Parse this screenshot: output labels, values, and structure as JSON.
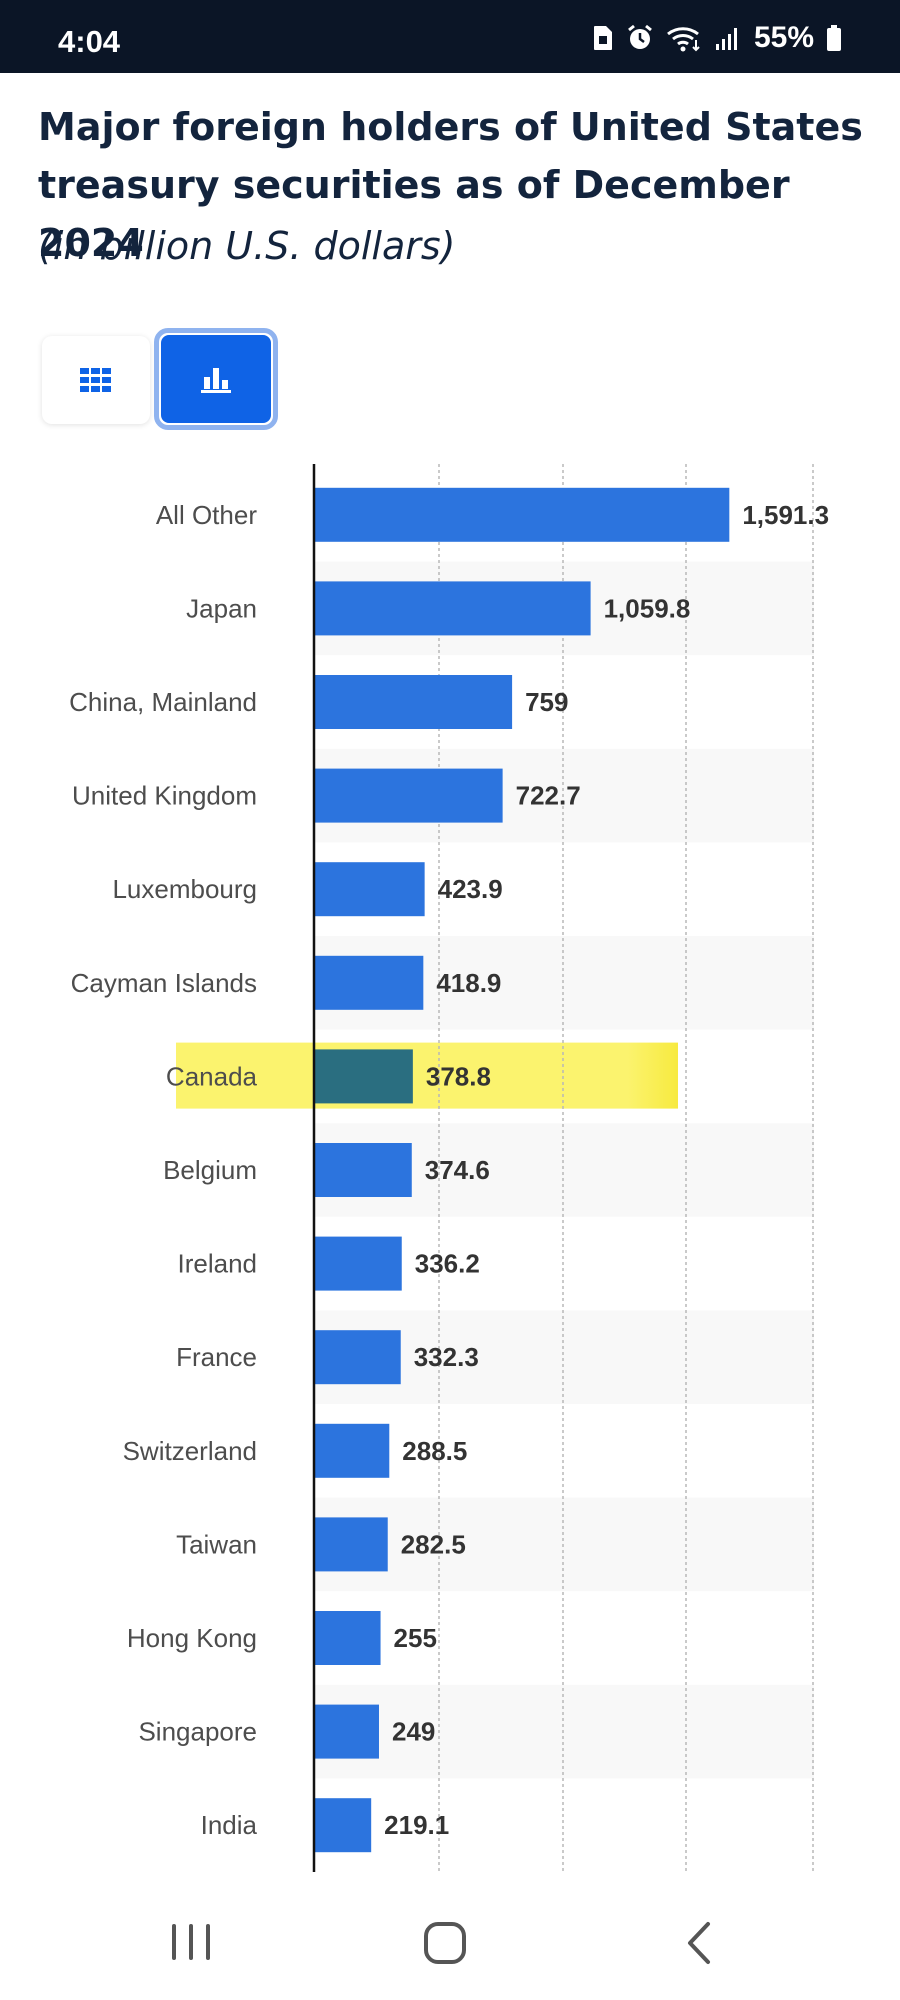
{
  "status_bar": {
    "time": "4:04",
    "battery": "55%",
    "icons": [
      "sim-icon",
      "alarm-icon",
      "wifi-icon",
      "signal-icon",
      "battery-icon"
    ]
  },
  "header": {
    "title": "Major foreign holders of United States treasury securities as of December 2024",
    "subtitle": "(in billion U.S. dollars)"
  },
  "view_toggle": {
    "options": [
      {
        "name": "table-view",
        "icon": "grid-icon",
        "selected": false
      },
      {
        "name": "chart-view",
        "icon": "bar-chart-icon",
        "selected": true
      }
    ],
    "accent": "#0f63e6"
  },
  "colors": {
    "bar": "#2c74de",
    "highlight_bar": "#2a6e80",
    "highlight": "#fbf36e",
    "text_dark": "#13243d"
  },
  "chart_data": {
    "type": "bar",
    "orientation": "horizontal",
    "title": "Major foreign holders of United States treasury securities as of December 2024",
    "subtitle": "(in billion U.S. dollars)",
    "categories": [
      "All Other",
      "Japan",
      "China, Mainland",
      "United Kingdom",
      "Luxembourg",
      "Cayman Islands",
      "Canada",
      "Belgium",
      "Ireland",
      "France",
      "Switzerland",
      "Taiwan",
      "Hong Kong",
      "Singapore",
      "India"
    ],
    "values": [
      1591.3,
      1059.8,
      759,
      722.7,
      423.9,
      418.9,
      378.8,
      374.6,
      336.2,
      332.3,
      288.5,
      282.5,
      255,
      249,
      219.1
    ],
    "value_labels": [
      "1,591.3",
      "1,059.8",
      "759",
      "722.7",
      "423.9",
      "418.9",
      "378.8",
      "374.6",
      "336.2",
      "332.3",
      "288.5",
      "282.5",
      "255",
      "249",
      "219.1"
    ],
    "highlighted": "Canada",
    "xlim": [
      0,
      2000
    ],
    "grid": true
  }
}
